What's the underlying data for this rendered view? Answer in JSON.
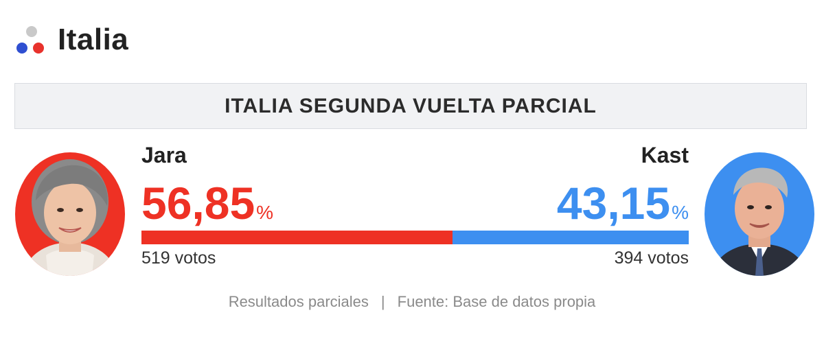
{
  "header": {
    "title": "Italia",
    "logo_dots": {
      "top": "#c9c9c9",
      "left": "#2f4fd1",
      "right": "#e8322c"
    }
  },
  "banner": {
    "title": "ITALIA SEGUNDA VUELTA PARCIAL"
  },
  "candidates": [
    {
      "name": "Jara",
      "percent": "56,85",
      "percent_sign": "%",
      "share": 0.5685,
      "votes": "519 votos",
      "color": "#ee3124",
      "avatar": "candidate-photo-jara"
    },
    {
      "name": "Kast",
      "percent": "43,15",
      "percent_sign": "%",
      "share": 0.4315,
      "votes": "394 votos",
      "color": "#3d8ff0",
      "avatar": "candidate-photo-kast"
    }
  ],
  "footer": {
    "note": "Resultados parciales",
    "separator": "|",
    "source": "Fuente: Base de datos propia"
  }
}
